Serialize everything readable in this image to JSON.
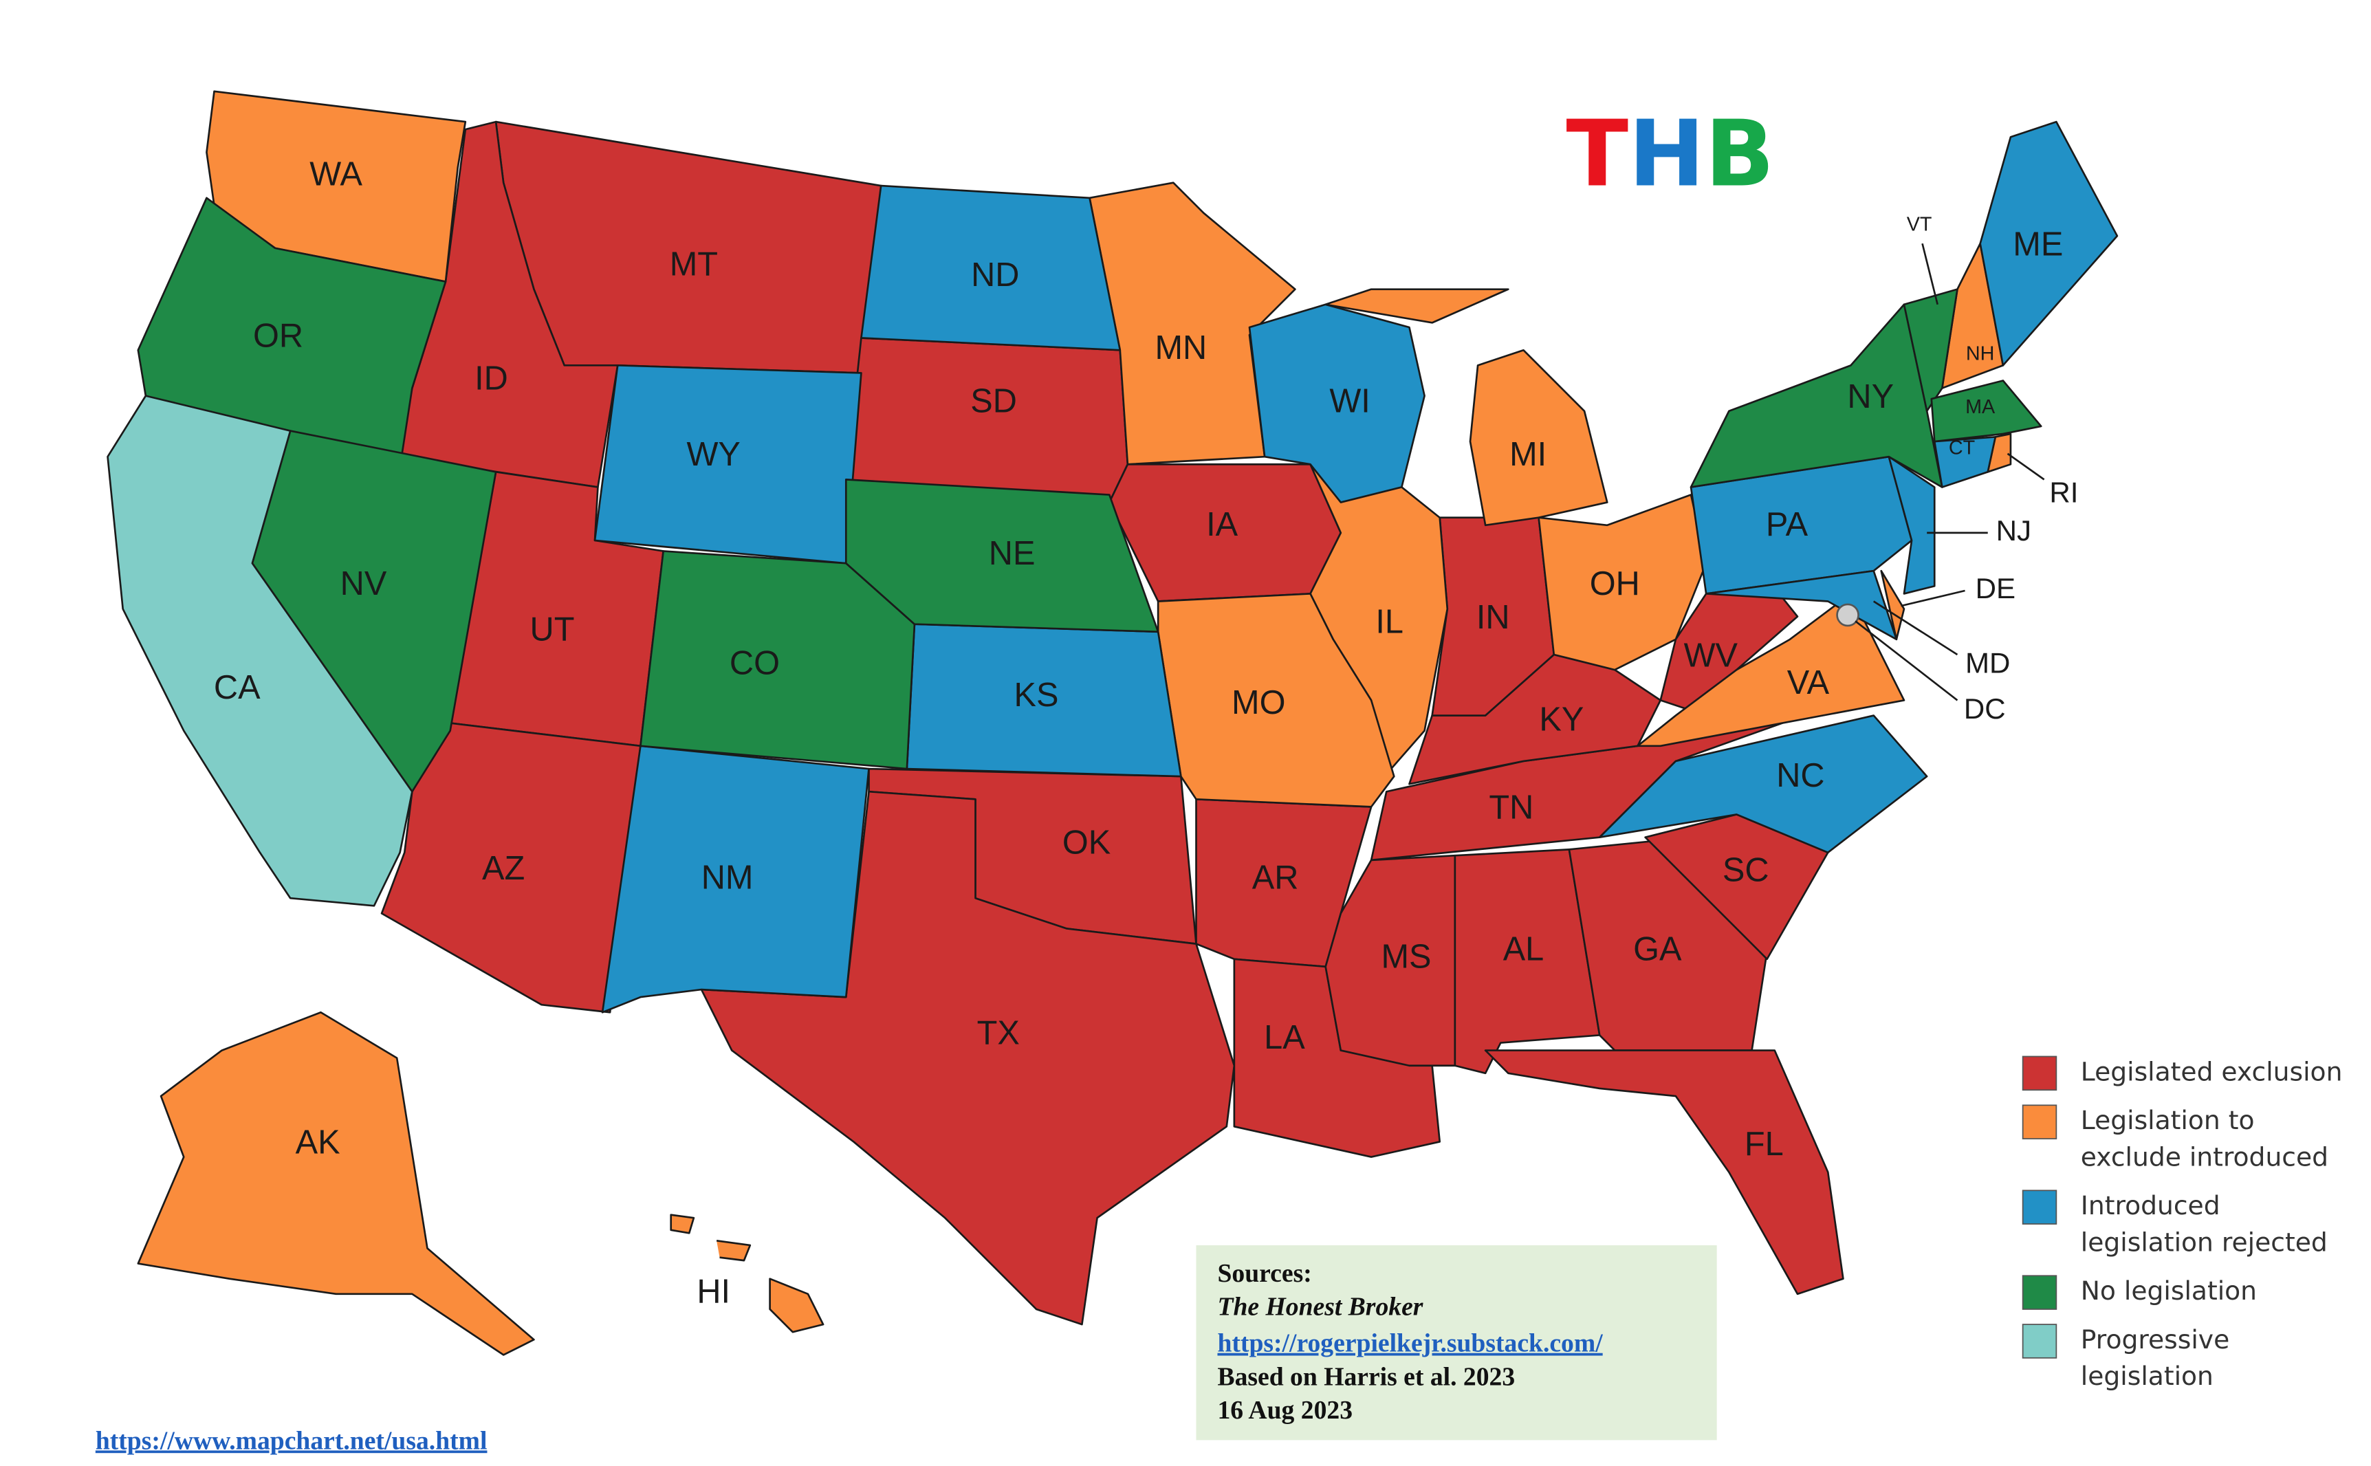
{
  "logo": [
    {
      "text": "T",
      "color": "#e8141e"
    },
    {
      "text": "H",
      "color": "#1a78c8"
    },
    {
      "text": "B",
      "color": "#17a84a"
    }
  ],
  "legend": [
    {
      "label": [
        "Legislated exclusion"
      ],
      "color": "#cc3333",
      "states": [
        "MT",
        "ID",
        "UT",
        "AZ",
        "SD",
        "IA",
        "OK",
        "TX",
        "AR",
        "LA",
        "MS",
        "AL",
        "GA",
        "FL",
        "SC",
        "TN",
        "KY",
        "IN",
        "WV"
      ]
    },
    {
      "label": [
        "Legislation to",
        "exclude introduced"
      ],
      "color": "#fa8c3c",
      "states": [
        "WA",
        "MN",
        "MI",
        "IL",
        "MO",
        "OH",
        "VA",
        "AK",
        "HI",
        "NH",
        "RI",
        "DE"
      ]
    },
    {
      "label": [
        "Introduced",
        "legislation rejected"
      ],
      "color": "#2291c6",
      "states": [
        "ND",
        "WY",
        "WI",
        "KS",
        "NM",
        "PA",
        "NC",
        "ME",
        "CT",
        "NJ",
        "MD"
      ]
    },
    {
      "label": [
        "No legislation"
      ],
      "color": "#1f8a47",
      "states": [
        "OR",
        "NV",
        "CO",
        "NE",
        "NY",
        "VT",
        "MA"
      ]
    },
    {
      "label": [
        "Progressive",
        "legislation"
      ],
      "color": "#80cdc7",
      "states": [
        "CA"
      ]
    }
  ],
  "dc": "DC",
  "sources": {
    "heading": "Sources:",
    "publication": "The Honest Broker",
    "url": "https://rogerpielkejr.substack.com/",
    "basis": "Based on Harris et al. 2023",
    "date": "16 Aug 2023"
  },
  "footer": "https://www.mapchart.net/usa.html"
}
